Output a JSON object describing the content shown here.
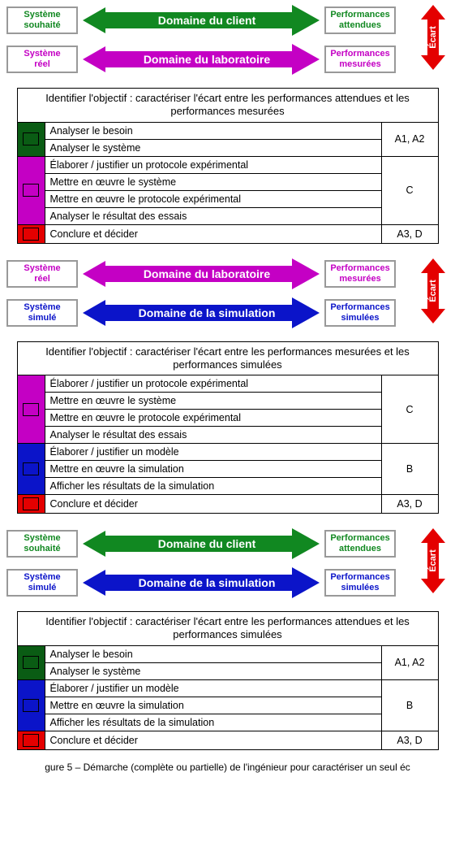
{
  "colors": {
    "green": "#118821",
    "magenta": "#c400c4",
    "blue": "#0b14c9",
    "red": "#e40000",
    "black": "#000000",
    "white": "#ffffff",
    "box_border": "#999999"
  },
  "ecart_label": "Écart",
  "flows": [
    {
      "rows": [
        {
          "left": {
            "line1": "Système",
            "line2": "souhaité",
            "text_color": "#118821"
          },
          "arrow": {
            "label": "Domaine du client",
            "fill": "#118821"
          },
          "right": {
            "line1": "Performances",
            "line2": "attendues",
            "text_color": "#118821"
          }
        },
        {
          "left": {
            "line1": "Système",
            "line2": "réel",
            "text_color": "#c400c4"
          },
          "arrow": {
            "label": "Domaine du laboratoire",
            "fill": "#c400c4"
          },
          "right": {
            "line1": "Performances",
            "line2": "mesurées",
            "text_color": "#c400c4"
          }
        }
      ]
    },
    {
      "rows": [
        {
          "left": {
            "line1": "Système",
            "line2": "réel",
            "text_color": "#c400c4"
          },
          "arrow": {
            "label": "Domaine du laboratoire",
            "fill": "#c400c4"
          },
          "right": {
            "line1": "Performances",
            "line2": "mesurées",
            "text_color": "#c400c4"
          }
        },
        {
          "left": {
            "line1": "Système",
            "line2": "simulé",
            "text_color": "#0b14c9"
          },
          "arrow": {
            "label": "Domaine de la simulation",
            "fill": "#0b14c9"
          },
          "right": {
            "line1": "Performances",
            "line2": "simulées",
            "text_color": "#0b14c9"
          }
        }
      ]
    },
    {
      "rows": [
        {
          "left": {
            "line1": "Système",
            "line2": "souhaité",
            "text_color": "#118821"
          },
          "arrow": {
            "label": "Domaine du client",
            "fill": "#118821"
          },
          "right": {
            "line1": "Performances",
            "line2": "attendues",
            "text_color": "#118821"
          }
        },
        {
          "left": {
            "line1": "Système",
            "line2": "simulé",
            "text_color": "#0b14c9"
          },
          "arrow": {
            "label": "Domaine de la simulation",
            "fill": "#0b14c9"
          },
          "right": {
            "line1": "Performances",
            "line2": "simulées",
            "text_color": "#0b14c9"
          }
        }
      ]
    }
  ],
  "tables": [
    {
      "header": "Identifier l'objectif : caractériser l'écart entre les performances attendues et les performances mesurées",
      "groups": [
        {
          "color": "#0a5c14",
          "items": [
            "Analyser le besoin",
            "Analyser le système"
          ],
          "code": "A1, A2"
        },
        {
          "color": "#c400c4",
          "items": [
            "Élaborer / justifier un protocole expérimental",
            "Mettre en œuvre le système",
            "Mettre en œuvre le protocole expérimental",
            "Analyser le résultat des essais"
          ],
          "code": "C"
        },
        {
          "color": "#e40000",
          "items": [
            "Conclure et décider"
          ],
          "code": "A3, D"
        }
      ]
    },
    {
      "header": "Identifier l'objectif : caractériser l'écart entre les performances mesurées et les performances simulées",
      "groups": [
        {
          "color": "#c400c4",
          "items": [
            "Élaborer / justifier un protocole expérimental",
            "Mettre en œuvre le système",
            "Mettre en œuvre le protocole expérimental",
            "Analyser le résultat des essais"
          ],
          "code": "C"
        },
        {
          "color": "#0b14c9",
          "items": [
            "Élaborer / justifier un modèle",
            "Mettre en œuvre la simulation",
            "Afficher les résultats de la simulation"
          ],
          "code": "B"
        },
        {
          "color": "#e40000",
          "items": [
            "Conclure et décider"
          ],
          "code": "A3, D"
        }
      ]
    },
    {
      "header": "Identifier l'objectif : caractériser l'écart entre les performances attendues et les performances simulées",
      "groups": [
        {
          "color": "#0a5c14",
          "items": [
            "Analyser le besoin",
            "Analyser le système"
          ],
          "code": "A1, A2"
        },
        {
          "color": "#0b14c9",
          "items": [
            "Élaborer / justifier un modèle",
            "Mettre en œuvre la simulation",
            "Afficher les résultats de la simulation"
          ],
          "code": "B"
        },
        {
          "color": "#e40000",
          "items": [
            "Conclure et décider"
          ],
          "code": "A3, D"
        }
      ]
    }
  ],
  "caption": "gure 5 – Démarche (complète ou partielle) de l'ingénieur pour caractériser un seul éc"
}
